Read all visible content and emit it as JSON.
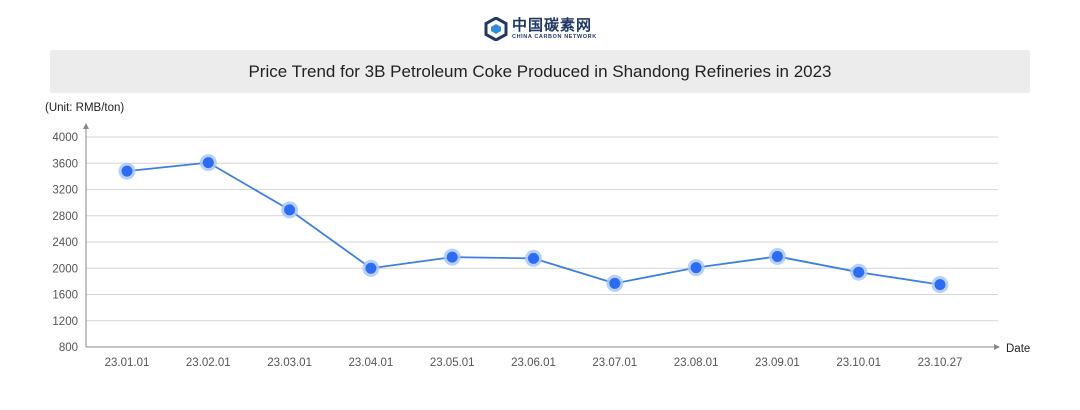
{
  "logo": {
    "cn_text": "中国碳素网",
    "en_text": "CHINA CARBON NETWORK"
  },
  "chart_data": {
    "type": "line",
    "title": "Price Trend for 3B Petroleum Coke Produced in Shandong Refineries in 2023",
    "ylabel": "(Unit: RMB/ton)",
    "xlabel": "Date",
    "ylim": [
      800,
      4000
    ],
    "yticks": [
      800,
      1200,
      1600,
      2000,
      2400,
      2800,
      3200,
      3600,
      4000
    ],
    "grid": true,
    "categories": [
      "23.01.01",
      "23.02.01",
      "23.03.01",
      "23.04.01",
      "23.05.01",
      "23.06.01",
      "23.07.01",
      "23.08.01",
      "23.09.01",
      "23.10.01",
      "23.10.27"
    ],
    "series": [
      {
        "values": [
          3480,
          3610,
          2890,
          2000,
          2170,
          2150,
          1770,
          2010,
          2180,
          1940,
          1750
        ]
      }
    ],
    "colors": {
      "line": "#3f7fe0",
      "point": "#2d6cf0",
      "halo": "#a9c8f7",
      "grid": "#d6d6d6",
      "axis": "#888888"
    }
  }
}
